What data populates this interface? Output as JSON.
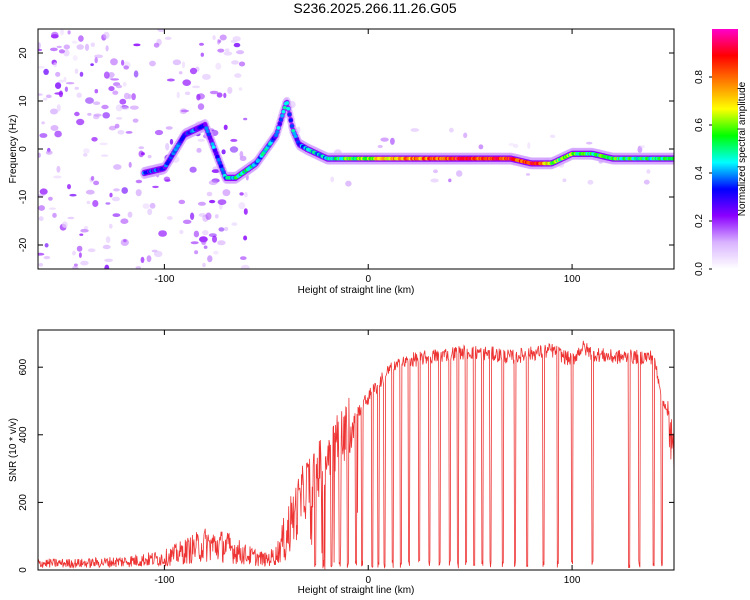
{
  "title": "S236.2025.266.11.26.G05",
  "chart_data": [
    {
      "type": "heatmap",
      "name": "spectrogram",
      "xlabel": "Height of straight line (km)",
      "ylabel": "Frequency (Hz)",
      "xlim": [
        -162,
        150
      ],
      "ylim": [
        -25,
        25
      ],
      "xticks": [
        -100,
        0,
        100
      ],
      "yticks": [
        -20,
        -10,
        0,
        10,
        20
      ],
      "grid": false,
      "colorbar": {
        "label": "Normalized spectral amplitude",
        "range": [
          0,
          1
        ],
        "ticks": [
          0.0,
          0.2,
          0.4,
          0.6,
          0.8
        ],
        "tick_labels": [
          "0.0",
          "0.2",
          "0.4",
          "0.6",
          "0.8"
        ],
        "colors": [
          "#ffffff",
          "#d9b3ff",
          "#8b00ff",
          "#0000ff",
          "#00ffff",
          "#00ff00",
          "#ffff00",
          "#ff8000",
          "#ff0000",
          "#ff00cc"
        ]
      },
      "ridge": {
        "x": [
          -110,
          -100,
          -90,
          -80,
          -70,
          -65,
          -55,
          -45,
          -40,
          -37,
          -34,
          -30,
          -20,
          -10,
          0,
          10,
          20,
          30,
          40,
          50,
          60,
          70,
          80,
          85,
          90,
          95,
          100,
          110,
          120,
          130,
          140,
          150
        ],
        "y": [
          -5,
          -4,
          3,
          5,
          -6,
          -6,
          -3,
          3,
          10,
          4,
          1,
          0,
          -2,
          -2,
          -2,
          -2,
          -2,
          -2,
          -2,
          -2,
          -2,
          -2,
          -3,
          -3,
          -3,
          -2,
          -1,
          -1,
          -2,
          -2,
          -2,
          -2
        ],
        "amp": [
          0.35,
          0.3,
          0.35,
          0.3,
          0.4,
          0.5,
          0.45,
          0.35,
          0.45,
          0.4,
          0.35,
          0.4,
          0.45,
          0.55,
          0.6,
          0.7,
          0.75,
          0.8,
          0.85,
          0.85,
          0.85,
          0.85,
          0.85,
          0.8,
          0.6,
          0.55,
          0.6,
          0.5,
          0.55,
          0.5,
          0.5,
          0.5
        ]
      }
    },
    {
      "type": "line",
      "name": "snr",
      "xlabel": "Height of straight line (km)",
      "ylabel": "SNR (10 * v/v)",
      "xlim": [
        -162,
        150
      ],
      "ylim": [
        0,
        710
      ],
      "xticks": [
        -100,
        0,
        100
      ],
      "yticks": [
        0,
        200,
        400,
        600
      ],
      "color": "#ee3333",
      "grid": false,
      "envelope": {
        "x": [
          -162,
          -140,
          -120,
          -100,
          -90,
          -80,
          -70,
          -60,
          -50,
          -45,
          -40,
          -35,
          -30,
          -25,
          -20,
          -15,
          -10,
          -5,
          0,
          5,
          10,
          20,
          30,
          40,
          50,
          60,
          70,
          80,
          90,
          100,
          105,
          110,
          120,
          130,
          140,
          148,
          150
        ],
        "y": [
          20,
          20,
          25,
          35,
          55,
          75,
          70,
          45,
          30,
          45,
          110,
          180,
          250,
          290,
          340,
          380,
          420,
          470,
          510,
          550,
          590,
          620,
          630,
          640,
          645,
          640,
          630,
          640,
          650,
          620,
          660,
          640,
          630,
          630,
          630,
          420,
          300
        ]
      },
      "dropouts_x": [
        -26,
        -22,
        -18,
        -14,
        -10,
        -6,
        -3,
        2,
        5,
        8,
        12,
        16,
        20,
        25,
        30,
        35,
        40,
        44,
        48,
        52,
        56,
        60,
        66,
        72,
        78,
        86,
        93,
        100,
        110,
        128,
        133,
        140,
        144
      ]
    }
  ]
}
